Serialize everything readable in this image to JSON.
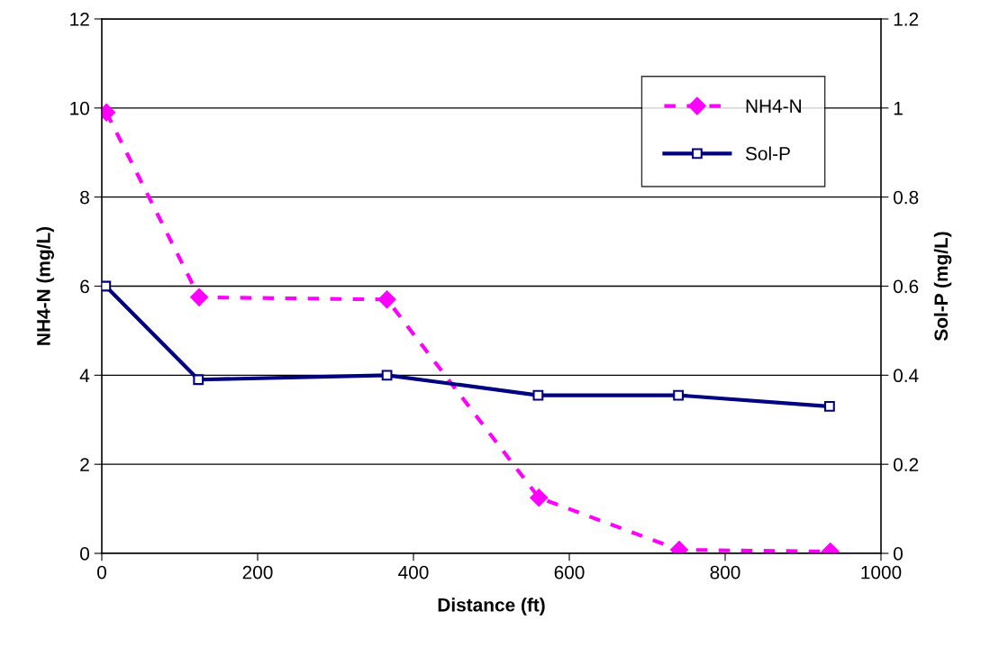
{
  "chart_data": {
    "type": "line",
    "xlabel": "Distance (ft)",
    "ylabel": "NH4-N (mg/L)",
    "y2label": "Sol-P (mg/L)",
    "xlim": [
      0,
      1000
    ],
    "xticks": [
      0,
      200,
      400,
      600,
      800,
      1000
    ],
    "ylim": [
      0,
      12
    ],
    "yticks": [
      0,
      2,
      4,
      6,
      8,
      10,
      12
    ],
    "y2lim": [
      0,
      1.2
    ],
    "y2ticks": [
      0,
      0.2,
      0.4,
      0.6,
      0.8,
      1,
      1.2
    ],
    "grid": "y",
    "legend": "top right",
    "series": [
      {
        "name": "NH4-N",
        "color": "#ff00ff",
        "marker": "diamond",
        "line_style": "dashed",
        "x": [
          6,
          125,
          366,
          561,
          741,
          935
        ],
        "values": [
          9.9,
          5.75,
          5.7,
          1.25,
          0.08,
          0.04
        ]
      },
      {
        "name": "Sol-P",
        "color": "#000080",
        "marker": "square",
        "line_style": "solid",
        "axis": "y2",
        "x": [
          5,
          124,
          366,
          560,
          740,
          934
        ],
        "values": [
          0.6,
          0.39,
          0.4,
          0.355,
          0.355,
          0.33
        ]
      }
    ]
  }
}
